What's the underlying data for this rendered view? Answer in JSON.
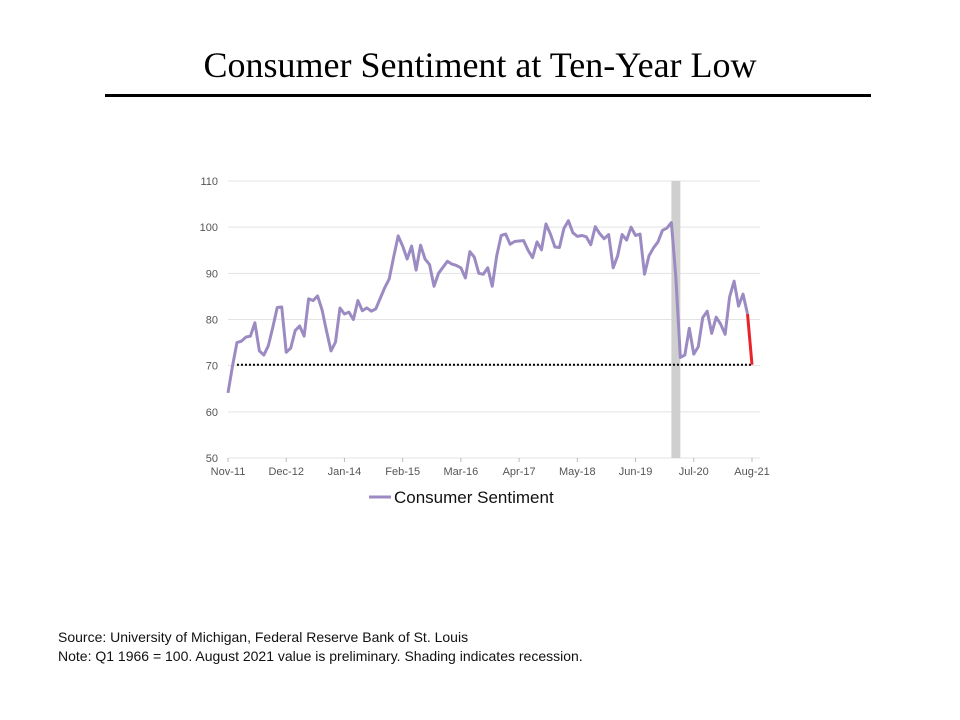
{
  "title": "Consumer Sentiment at Ten-Year Low",
  "footnotes": {
    "source": "Source: University of Michigan, Federal Reserve Bank of St. Louis",
    "note": "Note: Q1 1966 = 100. August 2021 value is preliminary. Shading indicates recession."
  },
  "colors": {
    "series": "#9b8bc2",
    "latest_segment": "#e8232a",
    "recession": "#cfcfcf",
    "grid": "#e3e3e3",
    "reference_line": "#000000"
  },
  "chart_data": {
    "type": "line",
    "title": "",
    "xlabel": "",
    "ylabel": "",
    "ylim": [
      50,
      110
    ],
    "yticks": [
      110,
      100,
      90,
      80,
      70,
      60,
      50
    ],
    "xticks": [
      "Nov-11",
      "Dec-12",
      "Jan-14",
      "Feb-15",
      "Mar-16",
      "Apr-17",
      "May-18",
      "Jun-19",
      "Jul-20",
      "Aug-21"
    ],
    "grid": true,
    "legend": "bottom-center",
    "recession_shading": {
      "start": "Feb-20",
      "end": "Apr-20"
    },
    "reference_line": {
      "y": 70.2,
      "style": "dotted"
    },
    "highlight": {
      "from": "Jul-21",
      "to": "Aug-21",
      "color": "red"
    },
    "series": [
      {
        "name": "Consumer Sentiment",
        "values": [
          64.1,
          69.9,
          75.0,
          75.3,
          76.2,
          76.4,
          79.3,
          73.2,
          72.3,
          74.3,
          78.3,
          82.6,
          82.7,
          72.9,
          73.8,
          77.6,
          78.6,
          76.4,
          84.5,
          84.1,
          85.1,
          82.1,
          77.5,
          73.2,
          75.1,
          82.5,
          81.2,
          81.6,
          80.0,
          84.1,
          81.9,
          82.5,
          81.8,
          82.3,
          84.6,
          86.9,
          88.8,
          93.6,
          98.1,
          95.9,
          93.1,
          95.9,
          90.7,
          96.1,
          93.1,
          91.9,
          87.2,
          90.0,
          91.3,
          92.6,
          92.0,
          91.7,
          91.2,
          89.0,
          94.7,
          93.5,
          90.0,
          89.8,
          91.2,
          87.2,
          93.8,
          98.2,
          98.5,
          96.3,
          96.9,
          97.0,
          97.1,
          95.0,
          93.4,
          96.8,
          95.1,
          100.7,
          98.5,
          95.7,
          95.6,
          99.7,
          101.4,
          98.8,
          98.0,
          98.2,
          97.9,
          96.2,
          100.1,
          98.6,
          97.5,
          98.4,
          91.2,
          93.8,
          98.4,
          97.2,
          100.0,
          98.2,
          98.5,
          89.8,
          93.8,
          95.5,
          96.8,
          99.3,
          99.8,
          101.0,
          89.1,
          71.8,
          72.3,
          78.1,
          72.5,
          74.1,
          80.4,
          81.8,
          77.0,
          80.5,
          79.0,
          76.8,
          84.9,
          88.3,
          82.9,
          85.5,
          81.2,
          70.2
        ]
      }
    ]
  }
}
